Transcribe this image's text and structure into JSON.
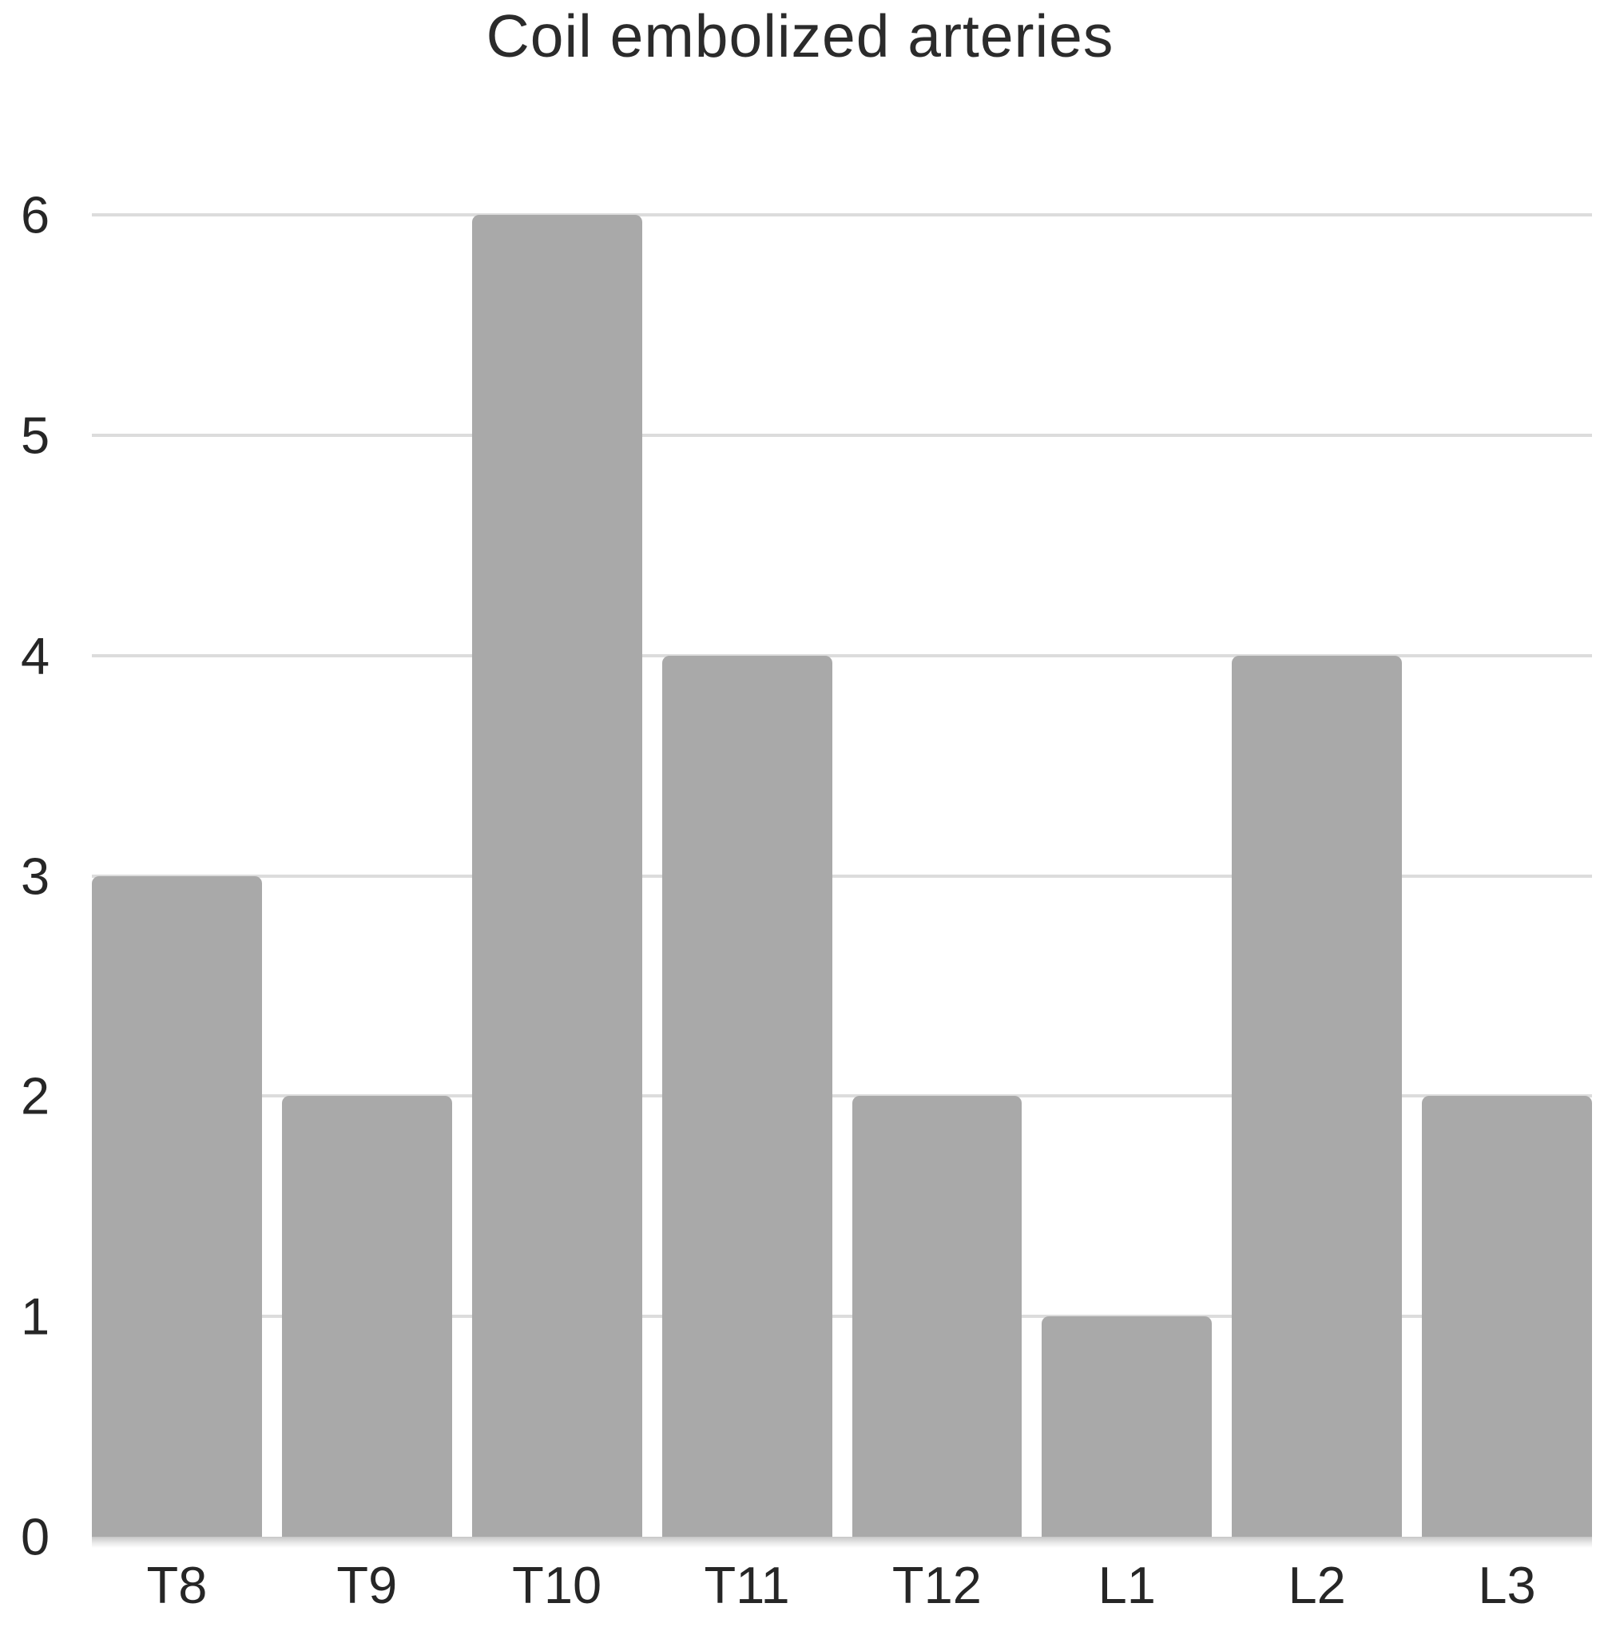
{
  "chart_data": {
    "type": "bar",
    "title": "Coil embolized arteries",
    "categories": [
      "T8",
      "T9",
      "T10",
      "T11",
      "T12",
      "L1",
      "L2",
      "L3"
    ],
    "values": [
      3,
      2,
      6,
      4,
      2,
      1,
      4,
      2
    ],
    "xlabel": "",
    "ylabel": "",
    "ylim": [
      0,
      6
    ],
    "yticks": [
      0,
      1,
      2,
      3,
      4,
      5,
      6
    ],
    "grid": true,
    "legend_position": "none",
    "bar_color": "#a9a9a9",
    "gridline_color": "#dcdcdc",
    "text_color": "#262626",
    "background_color": "#ffffff"
  }
}
